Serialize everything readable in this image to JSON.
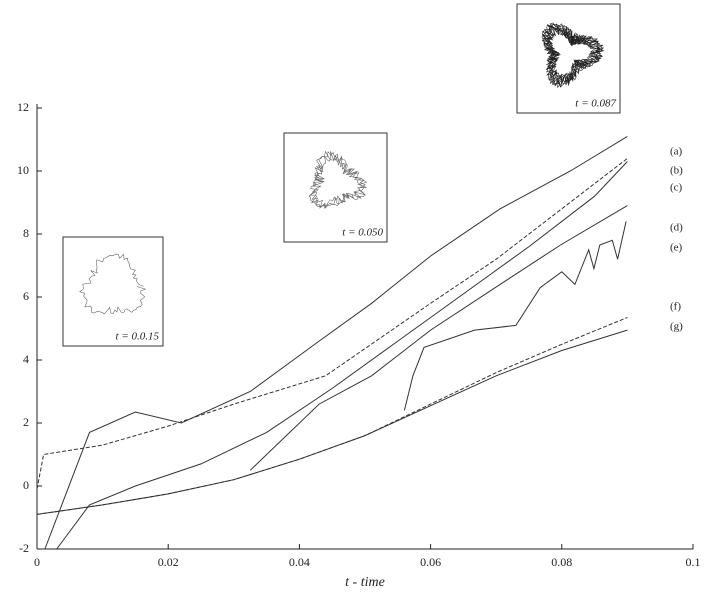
{
  "chart_data": {
    "type": "line",
    "x_label": "t - time",
    "xlim": [
      0,
      0.1
    ],
    "ylim": [
      -2,
      12
    ],
    "xticks": [
      0,
      0.02,
      0.04,
      0.06,
      0.08,
      0.1
    ],
    "yticks": [
      -2,
      0,
      2,
      4,
      6,
      8,
      10,
      12
    ],
    "series": [
      {
        "name": "(a)",
        "color": "#333333",
        "dashed": false,
        "x": [
          0.0012,
          0.008,
          0.015,
          0.022,
          0.0325,
          0.043,
          0.051,
          0.06,
          0.0706,
          0.0813,
          0.09
        ],
        "values": [
          -2,
          1.7,
          2.35,
          2.0,
          3.0,
          4.6,
          5.8,
          7.3,
          8.8,
          10.0,
          11.1
        ]
      },
      {
        "name": "(b)",
        "color": "#333333",
        "dashed": true,
        "x": [
          0,
          0.001,
          0.01,
          0.02,
          0.03,
          0.044,
          0.06,
          0.07,
          0.08,
          0.09
        ],
        "values": [
          -0.1,
          1.0,
          1.3,
          1.9,
          2.6,
          3.5,
          5.8,
          7.2,
          8.8,
          10.4
        ]
      },
      {
        "name": "(c)",
        "color": "#333333",
        "dashed": false,
        "x": [
          0.003,
          0.008,
          0.015,
          0.025,
          0.035,
          0.045,
          0.055,
          0.065,
          0.075,
          0.085,
          0.09
        ],
        "values": [
          -2,
          -0.6,
          0,
          0.7,
          1.7,
          3.1,
          4.6,
          6.1,
          7.6,
          9.2,
          10.3
        ]
      },
      {
        "name": "(d)",
        "color": "#333333",
        "dashed": false,
        "x": [
          0.0325,
          0.043,
          0.051,
          0.06,
          0.0706,
          0.0798,
          0.09
        ],
        "values": [
          0.5,
          2.6,
          3.5,
          4.95,
          6.4,
          7.65,
          8.9
        ]
      },
      {
        "name": "(e)",
        "color": "#333333",
        "dashed": false,
        "x": [
          0.056,
          0.0573,
          0.059,
          0.0667,
          0.073,
          0.0767,
          0.08,
          0.082,
          0.0841,
          0.0849,
          0.0858,
          0.0877,
          0.0885,
          0.0898
        ],
        "values": [
          2.4,
          3.5,
          4.4,
          4.95,
          5.1,
          6.3,
          6.8,
          6.4,
          7.5,
          6.9,
          7.65,
          7.8,
          7.2,
          8.4
        ]
      },
      {
        "name": "(f)",
        "color": "#333333",
        "dashed": true,
        "x": [
          0,
          0.01,
          0.02,
          0.03,
          0.04,
          0.05,
          0.06,
          0.07,
          0.08,
          0.09
        ],
        "values": [
          -0.9,
          -0.6,
          -0.25,
          0.2,
          0.85,
          1.6,
          2.6,
          3.6,
          4.5,
          5.35
        ]
      },
      {
        "name": "(g)",
        "color": "#333333",
        "dashed": false,
        "x": [
          0,
          0.01,
          0.02,
          0.03,
          0.04,
          0.05,
          0.06,
          0.07,
          0.08,
          0.09
        ],
        "values": [
          -0.9,
          -0.6,
          -0.25,
          0.2,
          0.85,
          1.6,
          2.55,
          3.5,
          4.3,
          4.95
        ]
      }
    ],
    "annotations": [
      "t = 0.0.15",
      "t = 0.050",
      "t = 0.087"
    ]
  }
}
